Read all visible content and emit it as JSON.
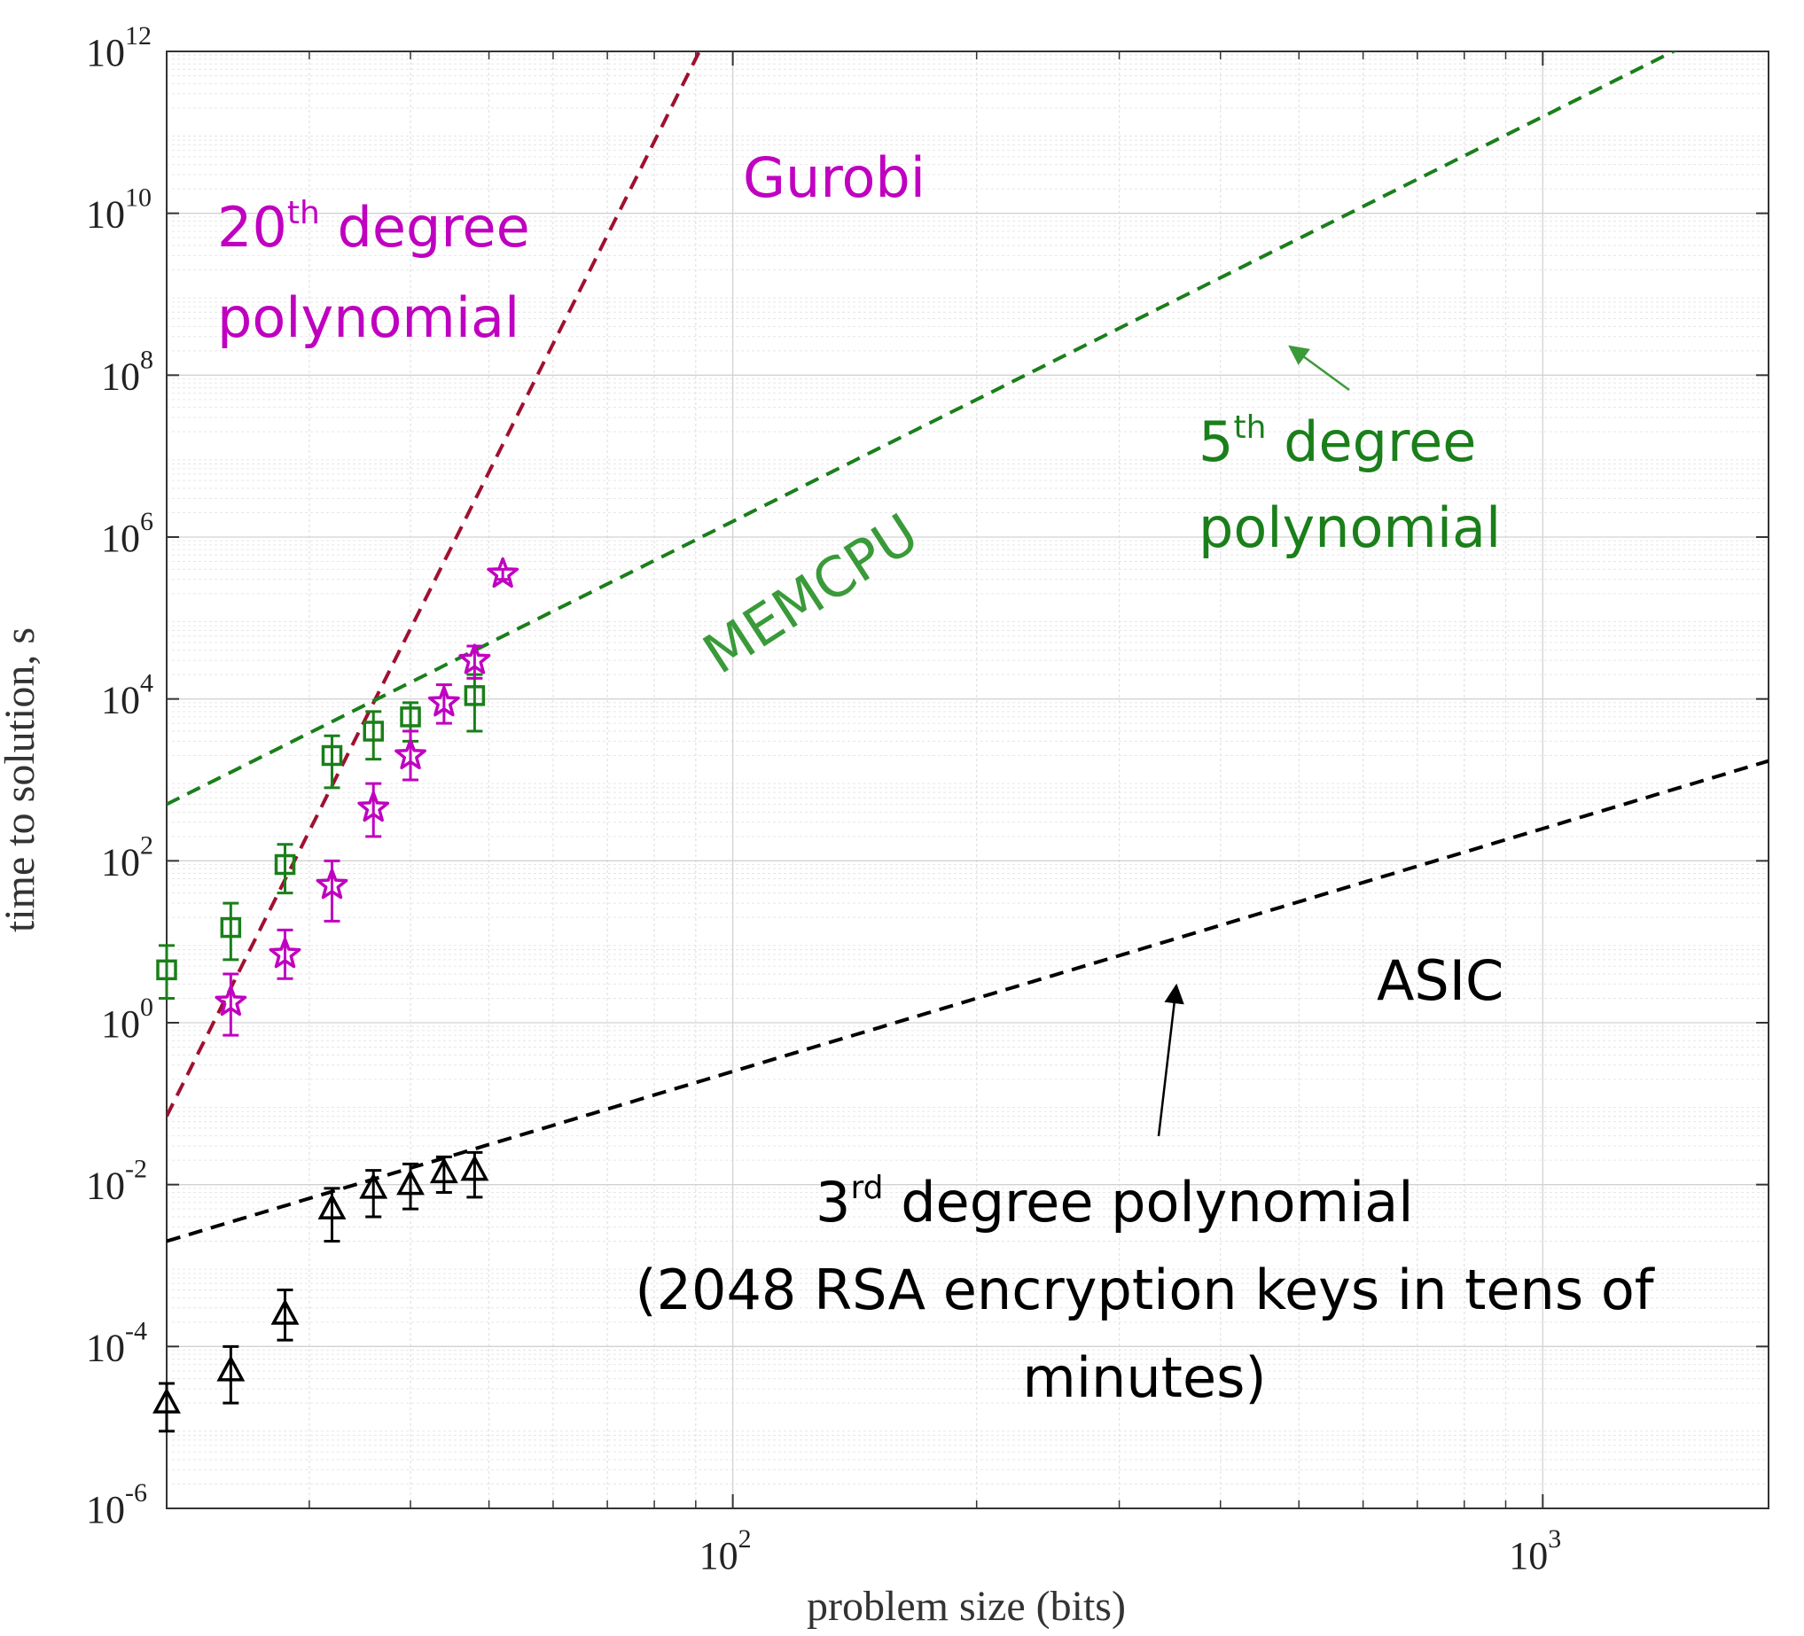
{
  "chart_data": {
    "type": "scatter",
    "title": "",
    "xlabel": "problem size (bits)",
    "ylabel": "time to solution, s",
    "xscale": "log",
    "yscale": "log",
    "xlim": [
      20,
      1900
    ],
    "ylim": [
      1e-06,
      1000000000000.0
    ],
    "grid": true,
    "x_ticks": [
      {
        "value": 100,
        "base": "10",
        "exp": "2"
      },
      {
        "value": 1000,
        "base": "10",
        "exp": "3"
      }
    ],
    "y_ticks": [
      {
        "value": 1e-06,
        "base": "10",
        "exp": "-6"
      },
      {
        "value": 0.0001,
        "base": "10",
        "exp": "-4"
      },
      {
        "value": 0.01,
        "base": "10",
        "exp": "-2"
      },
      {
        "value": 1,
        "base": "10",
        "exp": "0"
      },
      {
        "value": 100.0,
        "base": "10",
        "exp": "2"
      },
      {
        "value": 10000.0,
        "base": "10",
        "exp": "4"
      },
      {
        "value": 1000000.0,
        "base": "10",
        "exp": "6"
      },
      {
        "value": 100000000.0,
        "base": "10",
        "exp": "8"
      },
      {
        "value": 10000000000.0,
        "base": "10",
        "exp": "10"
      },
      {
        "value": 1000000000000.0,
        "base": "10",
        "exp": "12"
      }
    ],
    "series": [
      {
        "name": "MEMCPU",
        "marker": "square",
        "color": "#1a7f1a",
        "points": [
          {
            "x": 20,
            "y": 4.5,
            "lo": 2.0,
            "hi": 9.0
          },
          {
            "x": 24,
            "y": 15,
            "lo": 6.0,
            "hi": 30
          },
          {
            "x": 28,
            "y": 90,
            "lo": 40,
            "hi": 160
          },
          {
            "x": 32,
            "y": 2000,
            "lo": 800,
            "hi": 3500
          },
          {
            "x": 36,
            "y": 4000,
            "lo": 1800,
            "hi": 7000
          },
          {
            "x": 40,
            "y": 6000,
            "lo": 3000,
            "hi": 9000
          },
          {
            "x": 48,
            "y": 11000,
            "lo": 4000,
            "hi": 20000
          }
        ]
      },
      {
        "name": "Gurobi",
        "marker": "star",
        "color": "#c000c0",
        "points": [
          {
            "x": 24,
            "y": 1.8,
            "lo": 0.7,
            "hi": 4.0
          },
          {
            "x": 28,
            "y": 7.0,
            "lo": 3.5,
            "hi": 14
          },
          {
            "x": 32,
            "y": 50,
            "lo": 18,
            "hi": 100
          },
          {
            "x": 36,
            "y": 450,
            "lo": 200,
            "hi": 900
          },
          {
            "x": 40,
            "y": 2000,
            "lo": 1000,
            "hi": 4000
          },
          {
            "x": 44,
            "y": 9000,
            "lo": 5000,
            "hi": 15000
          },
          {
            "x": 48,
            "y": 30000,
            "lo": 18000,
            "hi": 45000
          },
          {
            "x": 52,
            "y": 350000,
            "lo": 300000,
            "hi": 400000
          }
        ]
      },
      {
        "name": "ASIC",
        "marker": "triangle",
        "color": "#000000",
        "points": [
          {
            "x": 20,
            "y": 2e-05,
            "lo": 9e-06,
            "hi": 3.5e-05
          },
          {
            "x": 24,
            "y": 5e-05,
            "lo": 2e-05,
            "hi": 0.0001
          },
          {
            "x": 28,
            "y": 0.00025,
            "lo": 0.00012,
            "hi": 0.0005
          },
          {
            "x": 32,
            "y": 0.005,
            "lo": 0.002,
            "hi": 0.009
          },
          {
            "x": 36,
            "y": 0.009,
            "lo": 0.004,
            "hi": 0.015
          },
          {
            "x": 40,
            "y": 0.01,
            "lo": 0.005,
            "hi": 0.018
          },
          {
            "x": 44,
            "y": 0.014,
            "lo": 0.008,
            "hi": 0.022
          },
          {
            "x": 48,
            "y": 0.015,
            "lo": 0.007,
            "hi": 0.025
          }
        ]
      }
    ],
    "fits": [
      {
        "name": "20th degree polynomial",
        "color": "#a01030",
        "x0": 20,
        "y0": 0.07,
        "degree": 20,
        "x_end": 1900
      },
      {
        "name": "5th degree polynomial",
        "color": "#1a7f1a",
        "x0": 20,
        "y0": 500,
        "degree": 5,
        "x_end": 1900
      },
      {
        "name": "3rd degree polynomial",
        "color": "#000000",
        "x0": 20,
        "y0": 0.002,
        "degree": 3,
        "x_end": 1900
      }
    ],
    "annotations": {
      "gurobi": "Gurobi",
      "gurobi_fit": {
        "pre": "20",
        "sup": "th",
        "post": " degree",
        "line2": "polynomial"
      },
      "memcpu": "MEMCPU",
      "memcpu_fit": {
        "pre": "5",
        "sup": "th",
        "post": " degree",
        "line2": "polynomial"
      },
      "asic": "ASIC",
      "asic_fit": {
        "pre": "3",
        "sup": "rd",
        "post": " degree polynomial",
        "line2": "(2048 RSA encryption keys in tens of",
        "line3": "minutes)"
      }
    }
  }
}
